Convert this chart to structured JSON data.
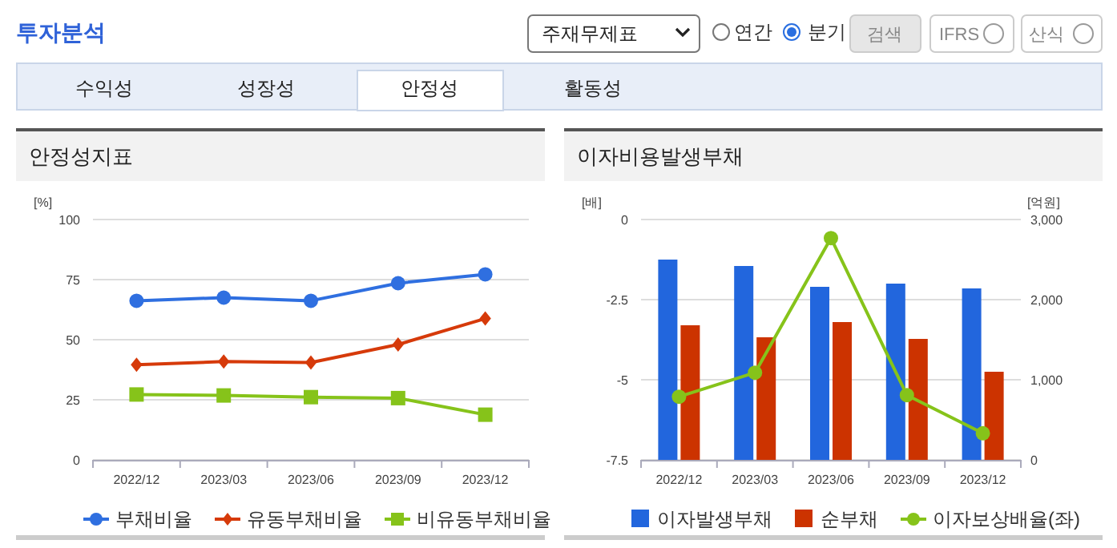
{
  "chart_data": [
    {
      "type": "other",
      "annotations": [
        "투자분석",
        "주재무제표",
        "연간",
        "분기",
        "검색",
        "IFRS",
        "산식",
        "수익성",
        "성장성",
        "안정성",
        "활동성"
      ]
    },
    {
      "type": "line",
      "title": "안정성지표",
      "ylabel": "[%]",
      "categories": [
        "2022/12",
        "2023/03",
        "2023/06",
        "2023/09",
        "2023/12"
      ],
      "ylim": [
        0,
        100
      ],
      "yticks": [
        0,
        25,
        50,
        75,
        100
      ],
      "grid": "y",
      "legend": "bottom",
      "line_style": "solid",
      "series": [
        {
          "name": "부채비율",
          "color": "#2f6fe0",
          "marker": "circle",
          "values": [
            66.2,
            67.5,
            66.2,
            73.5,
            77.2
          ]
        },
        {
          "name": "유동부채비율",
          "color": "#d63a0a",
          "marker": "diamond",
          "values": [
            39.6,
            40.9,
            40.5,
            48.0,
            58.8
          ]
        },
        {
          "name": "비유동부채비율",
          "color": "#86c31a",
          "marker": "square",
          "values": [
            27.2,
            26.8,
            26.1,
            25.7,
            18.8
          ]
        }
      ]
    },
    {
      "type": "bar",
      "title": "이자비용발생부채",
      "ylabel": "[배]",
      "y2label": "[억원]",
      "categories": [
        "2022/12",
        "2023/03",
        "2023/06",
        "2023/09",
        "2023/12"
      ],
      "ylim": [
        -7.5,
        0
      ],
      "yticks": [
        {
          "value": -7.5,
          "label": "-7.5"
        },
        {
          "value": -5,
          "label": "-5"
        },
        {
          "value": -2.5,
          "label": "-2.5"
        },
        0
      ],
      "y2lim": [
        0,
        3000
      ],
      "y2ticks": [
        0,
        {
          "value": 1000,
          "label": "1,000"
        },
        {
          "value": 2000,
          "label": "2,000"
        },
        {
          "value": 3000,
          "label": "3,000"
        }
      ],
      "grid": "y",
      "legend": "bottom",
      "series": [
        {
          "name": "이자발생부채",
          "color": "#2266dd",
          "axis": "y2",
          "values": [
            2500,
            2420,
            2160,
            2200,
            2140
          ]
        },
        {
          "name": "순부채",
          "color": "#cc3300",
          "axis": "y2",
          "values": [
            1680,
            1530,
            1720,
            1510,
            1100
          ]
        },
        {
          "name": "이자보상배율(좌)",
          "color": "#86c31a",
          "type": "line",
          "marker": "circle",
          "axis": "y",
          "values": [
            -5.53,
            -4.78,
            -0.58,
            -5.48,
            -6.67
          ]
        }
      ]
    }
  ]
}
